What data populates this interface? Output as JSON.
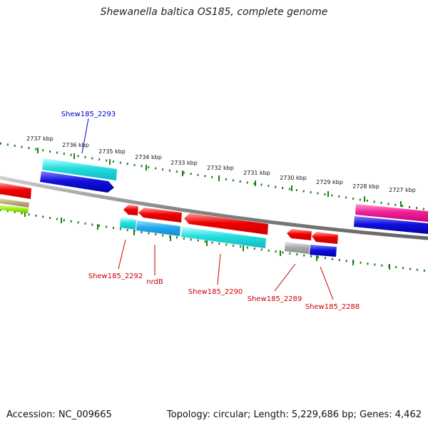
{
  "title": "Shewanella baltica OS185, complete genome",
  "footer": {
    "accession": "Accession: NC_009665",
    "topology": "Topology: circular; Length: 5,229,686 bp; Genes: 4,462"
  },
  "scale_labels": [
    "2737 kbp",
    "2736 kbp",
    "2735 kbp",
    "2734 kbp",
    "2733 kbp",
    "2732 kbp",
    "2731 kbp",
    "2730 kbp",
    "2729 kbp",
    "2728 kbp",
    "2727 kbp"
  ],
  "gene_labels": [
    "Shew185_2293",
    "Shew185_2292",
    "nrdB",
    "Shew185_2290",
    "Shew185_2289",
    "Shew185_2288"
  ],
  "colors": {
    "red": "#ee0000",
    "cyan": "#22dddd",
    "skyblue": "#22aaee",
    "blue": "#1111dd",
    "magenta": "#ee2299",
    "gray": "#aaaaaa",
    "tan": "#bbaa77",
    "lime": "#99ee11",
    "scale_green": "#1a7f1a",
    "backbone": "#888888",
    "label_red": "#cc0000",
    "label_blue": "#0000cc"
  }
}
